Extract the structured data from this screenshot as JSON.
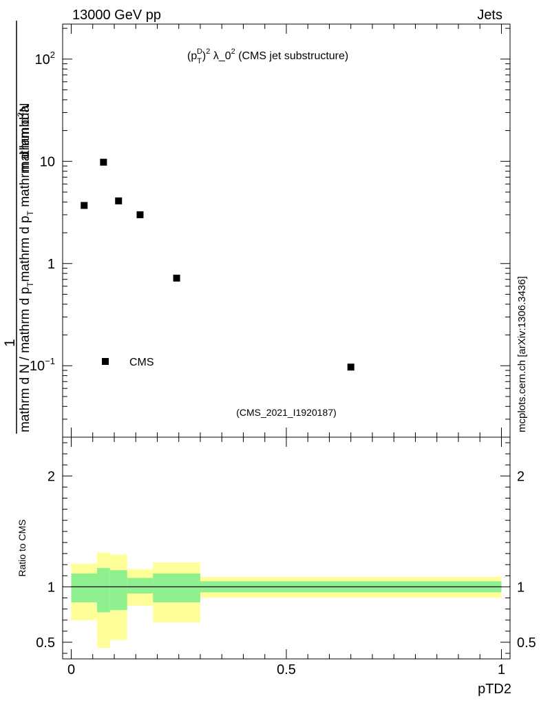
{
  "header": {
    "left": "13000 GeV pp",
    "right": "Jets"
  },
  "side_label": "mcplots.cern.ch [arXiv:1306.3436]",
  "chart_data": [
    {
      "type": "scatter",
      "scale": "log-y",
      "title_parts": {
        "base": "(p",
        "sub": "T",
        "sup": "D",
        "sup2": "2",
        "rest": " λ_0",
        "rest_sup": "2",
        "tail": " (CMS jet substructure)"
      },
      "ylabel_top": "1",
      "ylabel_bottom_parts": [
        "mathrm d N / mathrm d p",
        "T",
        "mathrm d N"
      ],
      "ylabel_numerator_parts": [
        "mathrm d p",
        "T",
        " mathrm d p",
        "T",
        " mathrm d lambda",
        "mathrm d",
        "2",
        "N"
      ],
      "ylabel_text": "mathrm d N / mathrm d p_T mathrm d p_T mathrm d lambda",
      "ylim": [
        0.02,
        220
      ],
      "xlim": [
        -0.02,
        1.02
      ],
      "y_ticks": [
        {
          "value": 100,
          "label": "10",
          "sup": "2"
        },
        {
          "value": 10,
          "label": "10",
          "sup": ""
        },
        {
          "value": 1,
          "label": "1",
          "sup": ""
        },
        {
          "value": 0.1,
          "label": "10",
          "sup": "−1"
        }
      ],
      "legend": {
        "label": "CMS",
        "position": "lower-left"
      },
      "watermark": "(CMS_2021_I1920187)",
      "series": [
        {
          "name": "CMS",
          "points": [
            {
              "x": 0.03,
              "y": 3.7
            },
            {
              "x": 0.075,
              "y": 9.8
            },
            {
              "x": 0.11,
              "y": 4.1
            },
            {
              "x": 0.16,
              "y": 3.0
            },
            {
              "x": 0.245,
              "y": 0.72
            },
            {
              "x": 0.65,
              "y": 0.097
            }
          ]
        }
      ]
    },
    {
      "type": "area",
      "ylabel": "Ratio to CMS",
      "xlabel": "pTD2",
      "ylim": [
        0.35,
        2.35
      ],
      "xlim": [
        -0.02,
        1.02
      ],
      "x_ticks": [
        {
          "value": 0,
          "label": "0"
        },
        {
          "value": 0.5,
          "label": "0.5"
        },
        {
          "value": 1,
          "label": "1"
        }
      ],
      "y_ticks": [
        {
          "value": 0.5,
          "label": "0.5"
        },
        {
          "value": 1,
          "label": "1"
        },
        {
          "value": 2,
          "label": "2"
        }
      ],
      "reference_line": 1,
      "bands": [
        {
          "x0": 0.0,
          "x1": 0.06,
          "inner": [
            0.86,
            1.12
          ],
          "outer": [
            0.7,
            1.21
          ]
        },
        {
          "x0": 0.06,
          "x1": 0.09,
          "inner": [
            0.77,
            1.17
          ],
          "outer": [
            0.45,
            1.31
          ]
        },
        {
          "x0": 0.09,
          "x1": 0.13,
          "inner": [
            0.79,
            1.15
          ],
          "outer": [
            0.52,
            1.29
          ]
        },
        {
          "x0": 0.13,
          "x1": 0.19,
          "inner": [
            0.94,
            1.08
          ],
          "outer": [
            0.83,
            1.16
          ]
        },
        {
          "x0": 0.19,
          "x1": 0.3,
          "inner": [
            0.86,
            1.12
          ],
          "outer": [
            0.68,
            1.22
          ]
        },
        {
          "x0": 0.3,
          "x1": 1.0,
          "inner": [
            0.95,
            1.05
          ],
          "outer": [
            0.9,
            1.09
          ]
        }
      ],
      "colors": {
        "inner": "#8ef08e",
        "outer": "#ffff99",
        "line": "#000000"
      }
    }
  ]
}
